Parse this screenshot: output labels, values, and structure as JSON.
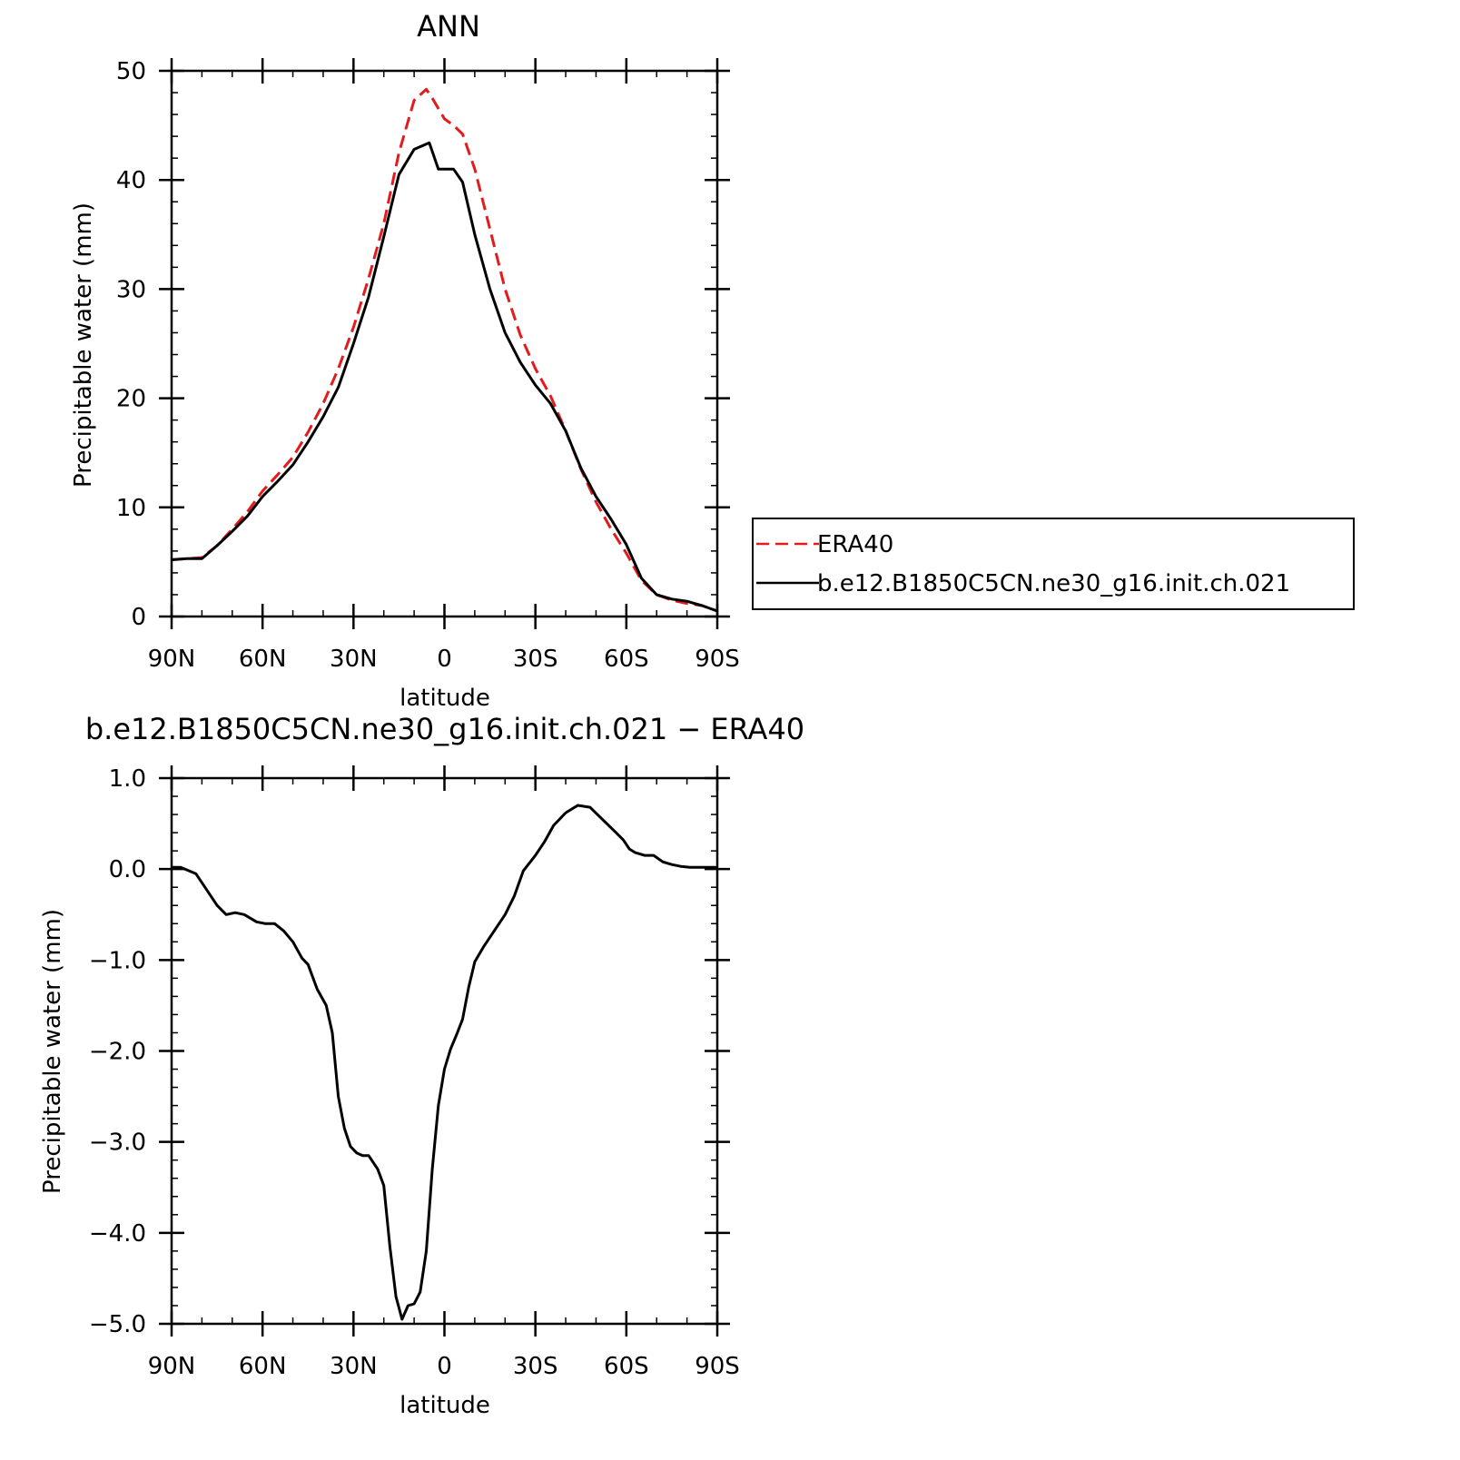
{
  "chart_data": [
    {
      "type": "line",
      "title": "ANN",
      "xlabel": "latitude",
      "ylabel": "Precipitable water (mm)",
      "xlim": [
        90,
        -90
      ],
      "ylim": [
        0,
        50
      ],
      "x_ticks": [
        90,
        60,
        30,
        0,
        -30,
        -60,
        -90
      ],
      "x_tick_labels": [
        "90N",
        "60N",
        "30N",
        "0",
        "30S",
        "60S",
        "90S"
      ],
      "y_ticks": [
        0,
        10,
        20,
        30,
        40,
        50
      ],
      "y_tick_labels": [
        "0",
        "10",
        "20",
        "30",
        "40",
        "50"
      ],
      "grid": false,
      "legend_position": "right",
      "series": [
        {
          "name": "ERA40",
          "color": "#e41a1c",
          "dash": "dashed",
          "x": [
            90,
            85,
            80,
            75,
            70,
            65,
            60,
            55,
            50,
            45,
            40,
            35,
            30,
            25,
            20,
            15,
            10,
            6,
            4,
            0,
            -3,
            -6,
            -10,
            -15,
            -20,
            -25,
            -30,
            -35,
            -40,
            -45,
            -50,
            -55,
            -60,
            -65,
            -70,
            -75,
            -80,
            -85,
            -90
          ],
          "values": [
            5.2,
            5.3,
            5.4,
            6.5,
            8.0,
            9.6,
            11.5,
            13.0,
            14.6,
            16.9,
            19.5,
            22.7,
            26.5,
            31.0,
            36.0,
            42.5,
            47.3,
            48.3,
            47.5,
            45.6,
            45.0,
            44.2,
            41.0,
            35.5,
            30.0,
            25.8,
            22.7,
            20.2,
            17.0,
            13.5,
            10.5,
            8.0,
            5.8,
            3.3,
            2.0,
            1.5,
            1.2,
            1.0,
            0.5
          ]
        },
        {
          "name": "b.e12.B1850C5CN.ne30_g16.init.ch.021",
          "color": "#000000",
          "dash": "solid",
          "x": [
            90,
            85,
            80,
            75,
            70,
            65,
            60,
            55,
            50,
            45,
            40,
            35,
            30,
            25,
            20,
            15,
            10,
            5,
            2,
            0,
            -3,
            -6,
            -10,
            -15,
            -20,
            -25,
            -30,
            -35,
            -40,
            -45,
            -50,
            -55,
            -60,
            -65,
            -70,
            -75,
            -80,
            -85,
            -90
          ],
          "values": [
            5.2,
            5.3,
            5.3,
            6.5,
            7.8,
            9.2,
            11.0,
            12.4,
            13.9,
            16.0,
            18.3,
            21.0,
            25.0,
            29.3,
            34.8,
            40.5,
            42.8,
            43.4,
            41.0,
            41.0,
            41.0,
            39.8,
            35.0,
            30.0,
            26.0,
            23.3,
            21.2,
            19.5,
            17.0,
            13.6,
            11.0,
            8.9,
            6.6,
            3.5,
            2.0,
            1.6,
            1.4,
            1.0,
            0.5
          ]
        }
      ]
    },
    {
      "type": "line",
      "title": "b.e12.B1850C5CN.ne30_g16.init.ch.021 − ERA40",
      "xlabel": "latitude",
      "ylabel": "Precipitable water (mm)",
      "xlim": [
        90,
        -90
      ],
      "ylim": [
        -5.0,
        1.0
      ],
      "x_ticks": [
        90,
        60,
        30,
        0,
        -30,
        -60,
        -90
      ],
      "x_tick_labels": [
        "90N",
        "60N",
        "30N",
        "0",
        "30S",
        "60S",
        "90S"
      ],
      "y_ticks": [
        1.0,
        0.0,
        -1.0,
        -2.0,
        -3.0,
        -4.0,
        -5.0
      ],
      "y_tick_labels": [
        "1.0",
        "0.0",
        "−1.0",
        "−2.0",
        "−3.0",
        "−4.0",
        "−5.0"
      ],
      "grid": false,
      "series": [
        {
          "name": "",
          "color": "#000000",
          "dash": "solid",
          "x": [
            90,
            87,
            82,
            78,
            75,
            72,
            69,
            66,
            62,
            59,
            56,
            53,
            50,
            47,
            45,
            42,
            39,
            37,
            35,
            33,
            31,
            29,
            27,
            25,
            22,
            20,
            18,
            16,
            14,
            12,
            10,
            8,
            6,
            4,
            2,
            0,
            -2,
            -4,
            -6,
            -8,
            -10,
            -13,
            -16,
            -18,
            -20,
            -23,
            -26,
            -30,
            -33,
            -36,
            -40,
            -44,
            -48,
            -52,
            -56,
            -59,
            -61,
            -63,
            -66,
            -69,
            -72,
            -75,
            -78,
            -81,
            -84,
            -87,
            -90
          ],
          "values": [
            0.02,
            0.02,
            -0.05,
            -0.25,
            -0.4,
            -0.5,
            -0.48,
            -0.5,
            -0.58,
            -0.6,
            -0.6,
            -0.68,
            -0.8,
            -0.98,
            -1.05,
            -1.32,
            -1.5,
            -1.8,
            -2.5,
            -2.85,
            -3.05,
            -3.12,
            -3.15,
            -3.15,
            -3.3,
            -3.48,
            -4.15,
            -4.7,
            -4.95,
            -4.8,
            -4.78,
            -4.65,
            -4.2,
            -3.3,
            -2.6,
            -2.2,
            -1.98,
            -1.82,
            -1.65,
            -1.3,
            -1.02,
            -0.85,
            -0.7,
            -0.6,
            -0.5,
            -0.3,
            -0.02,
            0.15,
            0.3,
            0.48,
            0.62,
            0.7,
            0.68,
            0.55,
            0.42,
            0.32,
            0.22,
            0.18,
            0.15,
            0.15,
            0.08,
            0.05,
            0.03,
            0.02,
            0.02,
            0.02,
            0.02
          ]
        }
      ]
    }
  ]
}
